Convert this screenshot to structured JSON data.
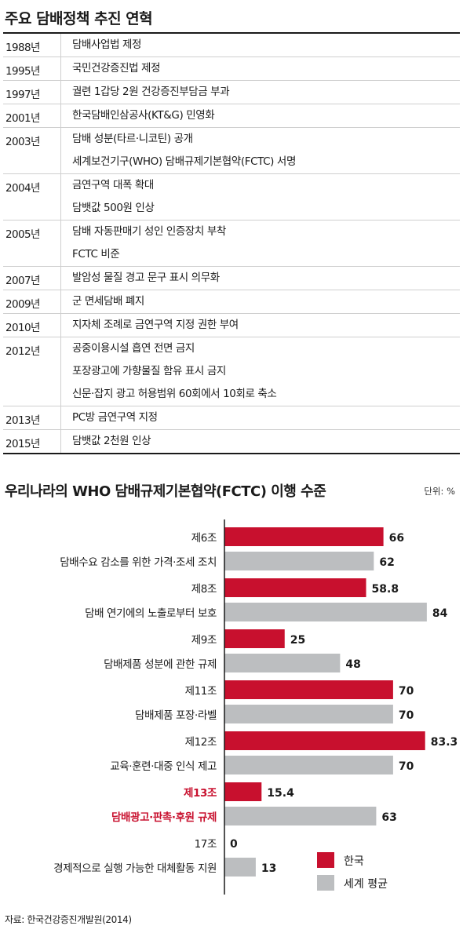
{
  "timeline": {
    "title": "주요 담배정책 추진 연혁",
    "rows": [
      {
        "year": "1988년",
        "events": [
          "담배사업법 제정"
        ]
      },
      {
        "year": "1995년",
        "events": [
          "국민건강증진법 제정"
        ]
      },
      {
        "year": "1997년",
        "events": [
          "궐련 1갑당 2원 건강증진부담금 부과"
        ]
      },
      {
        "year": "2001년",
        "events": [
          "한국담배인삼공사(KT&G) 민영화"
        ]
      },
      {
        "year": "2003년",
        "events": [
          "담배 성분(타르·니코틴) 공개",
          "세계보건기구(WHO) 담배규제기본협약(FCTC) 서명"
        ]
      },
      {
        "year": "2004년",
        "events": [
          "금연구역 대폭 확대",
          "담뱃값 500원 인상"
        ]
      },
      {
        "year": "2005년",
        "events": [
          "담배 자동판매기 성인 인증장치 부착",
          "FCTC 비준"
        ]
      },
      {
        "year": "2007년",
        "events": [
          "발암성 물질 경고 문구 표시 의무화"
        ]
      },
      {
        "year": "2009년",
        "events": [
          "군 면세담배 폐지"
        ]
      },
      {
        "year": "2010년",
        "events": [
          "지자체 조례로 금연구역 지정 권한 부여"
        ]
      },
      {
        "year": "2012년",
        "events": [
          "공중이용시설 흡연 전면 금지",
          "포장광고에 가향물질 함유 표시 금지",
          "신문·잡지 광고 허용범위 60회에서 10회로 축소"
        ]
      },
      {
        "year": "2013년",
        "events": [
          "PC방 금연구역 지정"
        ]
      },
      {
        "year": "2015년",
        "events": [
          "담뱃값 2천원 인상"
        ]
      }
    ]
  },
  "chart_data": {
    "type": "bar",
    "orientation": "horizontal",
    "title": "우리나라의 WHO 담배규제기본협약(FCTC) 이행 수준",
    "unit_label": "단위: %",
    "categories": [
      {
        "article": "제6조",
        "desc": "담배수요 감소를 위한 가격·조세 조치",
        "highlight": false
      },
      {
        "article": "제8조",
        "desc": "담배 연기에의 노출로부터 보호",
        "highlight": false
      },
      {
        "article": "제9조",
        "desc": "담배제품 성분에 관한 규제",
        "highlight": false
      },
      {
        "article": "제11조",
        "desc": "담배제품 포장·라벨",
        "highlight": false
      },
      {
        "article": "제12조",
        "desc": "교육·훈련·대중 인식 제고",
        "highlight": false
      },
      {
        "article": "제13조",
        "desc": "담배광고·판촉·후원 규제",
        "highlight": true
      },
      {
        "article": "17조",
        "desc": "경제적으로 실행 가능한 대체활동 지원",
        "highlight": false
      }
    ],
    "series": [
      {
        "name": "한국",
        "color": "#c8102e",
        "values": [
          66,
          58.8,
          25,
          70,
          83.3,
          15.4,
          0
        ],
        "labels": [
          "66",
          "58.8",
          "25",
          "70",
          "83.3",
          "15.4",
          "0"
        ]
      },
      {
        "name": "세계 평균",
        "color": "#bcbec0",
        "values": [
          62,
          84,
          48,
          70,
          70,
          63,
          13
        ],
        "labels": [
          "62",
          "84",
          "48",
          "70",
          "70",
          "63",
          "13"
        ]
      }
    ],
    "xlim": [
      0,
      100
    ],
    "legend_position": "bottom-right"
  },
  "source": "자료: 한국건강증진개발원(2014)"
}
